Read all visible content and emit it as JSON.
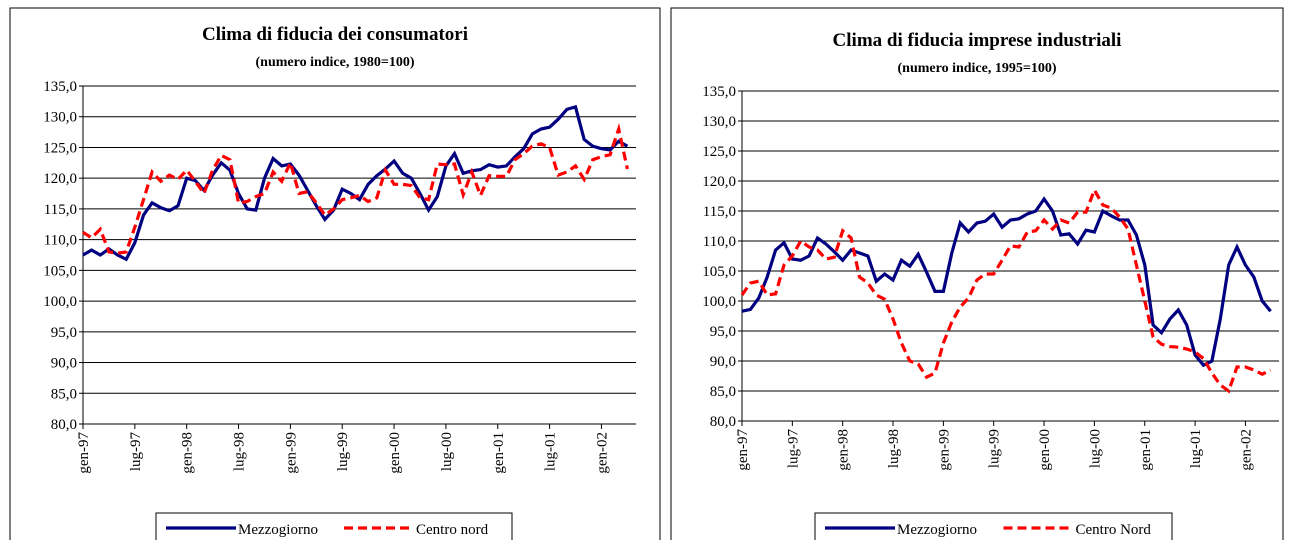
{
  "chart_data": [
    {
      "type": "line",
      "title": "Clima di fiducia dei consumatori",
      "subtitle": "(numero indice, 1980=100)",
      "categories": [
        "gen-97",
        null,
        null,
        null,
        null,
        null,
        "lug-97",
        null,
        null,
        null,
        null,
        null,
        "gen-98",
        null,
        null,
        null,
        null,
        null,
        "lug-98",
        null,
        null,
        null,
        null,
        null,
        "gen-99",
        null,
        null,
        null,
        null,
        null,
        "lug-99",
        null,
        null,
        null,
        null,
        null,
        "gen-00",
        null,
        null,
        null,
        null,
        null,
        "lug-00",
        null,
        null,
        null,
        null,
        null,
        "gen-01",
        null,
        null,
        null,
        null,
        null,
        "lug-01",
        null,
        null,
        null,
        null,
        null,
        "gen-02",
        null,
        null,
        null
      ],
      "series": [
        {
          "name": "Mezzogiorno",
          "color": "#000080",
          "dashed": false,
          "values": [
            107.5,
            108.3,
            107.5,
            108.5,
            107.5,
            106.8,
            109.5,
            114,
            116,
            115.2,
            114.7,
            115.5,
            120,
            119.6,
            118,
            120.5,
            122.5,
            121.3,
            117.5,
            115,
            114.8,
            120,
            123.2,
            122,
            122.3,
            120.5,
            118,
            115.5,
            113.3,
            114.8,
            118.2,
            117.5,
            116.5,
            119,
            120.4,
            121.5,
            122.8,
            120.8,
            120,
            117.5,
            114.8,
            117,
            122,
            124,
            120.8,
            121.2,
            121.4,
            122.2,
            121.8,
            122,
            123.5,
            124.8,
            127.2,
            128,
            128.3,
            129.6,
            131.2,
            131.6,
            126.3,
            125.2,
            124.8,
            124.6,
            126,
            125.2
          ]
        },
        {
          "name": "Centro nord",
          "color": "#ff0000",
          "dashed": true,
          "values": [
            111.2,
            110.3,
            111.7,
            108,
            107.8,
            108,
            112,
            116.5,
            121,
            119.5,
            120.5,
            119.8,
            121.3,
            119.5,
            117.5,
            121.3,
            123.7,
            123,
            116,
            116.2,
            117,
            117.5,
            121,
            119.5,
            122.5,
            117.5,
            117.8,
            116,
            114,
            115,
            116.5,
            116.8,
            117.2,
            116.2,
            116.8,
            121.3,
            119,
            119,
            118.8,
            116.8,
            116.5,
            122.3,
            122.2,
            122.3,
            117.3,
            121,
            117.2,
            120.4,
            120.3,
            120.3,
            123,
            124,
            125.2,
            125.6,
            125,
            120.5,
            121,
            122,
            119.8,
            123,
            123.5,
            123.8,
            128,
            121.5
          ]
        }
      ],
      "ylim": [
        80,
        135
      ],
      "yticks": [
        {
          "value": 80,
          "label": "80,0"
        },
        {
          "value": 85,
          "label": "85,0"
        },
        {
          "value": 90,
          "label": "90,0"
        },
        {
          "value": 95,
          "label": "95,0"
        },
        {
          "value": 100,
          "label": "100,0"
        },
        {
          "value": 105,
          "label": "105,0"
        },
        {
          "value": 110,
          "label": "110,0"
        },
        {
          "value": 115,
          "label": "115,0"
        },
        {
          "value": 120,
          "label": "120,0"
        },
        {
          "value": 125,
          "label": "125,0"
        },
        {
          "value": 130,
          "label": "130,0"
        },
        {
          "value": 135,
          "label": "135,0"
        }
      ],
      "grid": true,
      "legend": "bottom"
    },
    {
      "type": "line",
      "title": "Clima di fiducia imprese industriali",
      "subtitle": "(numero indice, 1995=100)",
      "categories": [
        "gen-97",
        null,
        null,
        null,
        null,
        null,
        "lug-97",
        null,
        null,
        null,
        null,
        null,
        "gen-98",
        null,
        null,
        null,
        null,
        null,
        "lug-98",
        null,
        null,
        null,
        null,
        null,
        "gen-99",
        null,
        null,
        null,
        null,
        null,
        "lug-99",
        null,
        null,
        null,
        null,
        null,
        "gen-00",
        null,
        null,
        null,
        null,
        null,
        "lug-00",
        null,
        null,
        null,
        null,
        null,
        "gen-01",
        null,
        null,
        null,
        null,
        null,
        "lug-01",
        null,
        null,
        null,
        null,
        null,
        "gen-02",
        null,
        null,
        null
      ],
      "series": [
        {
          "name": "Mezzogiorno",
          "color": "#000080",
          "dashed": false,
          "values": [
            98.3,
            98.6,
            100.5,
            104,
            108.5,
            109.7,
            107,
            106.8,
            107.5,
            110.5,
            109.5,
            108.2,
            106.8,
            108.5,
            108,
            107.5,
            103.3,
            104.5,
            103.5,
            106.8,
            105.8,
            107.8,
            104.8,
            101.6,
            101.6,
            108,
            113,
            111.5,
            113,
            113.3,
            114.5,
            112.3,
            113.5,
            113.7,
            114.5,
            115,
            117,
            115,
            111,
            111.2,
            109.5,
            111.8,
            111.5,
            115,
            114.2,
            113.5,
            113.5,
            111,
            106,
            96,
            94.7,
            97,
            98.5,
            96,
            91,
            89.3,
            90,
            97,
            106,
            109,
            106,
            104,
            100,
            98.3
          ]
        },
        {
          "name": "Centro Nord",
          "color": "#ff0000",
          "dashed": true,
          "values": [
            101,
            103,
            103.3,
            101,
            101.2,
            106,
            107.5,
            110,
            109,
            108.5,
            107,
            107.3,
            111.7,
            110.5,
            104,
            103,
            101,
            100.3,
            97,
            93,
            90,
            89.5,
            87.3,
            88,
            93,
            96.5,
            99,
            100.5,
            103.5,
            104.5,
            104.5,
            106.8,
            109.2,
            109,
            111.5,
            111.7,
            113.5,
            112,
            113.5,
            113,
            114.8,
            114.8,
            118.5,
            116,
            115.5,
            114,
            112,
            106,
            100,
            94,
            92.8,
            92.4,
            92.3,
            92,
            91.5,
            90.4,
            88,
            86,
            85,
            89,
            89,
            88.5,
            87.8,
            88.5
          ]
        }
      ],
      "ylim": [
        80,
        135
      ],
      "yticks": [
        {
          "value": 80,
          "label": "80,0"
        },
        {
          "value": 85,
          "label": "85,0"
        },
        {
          "value": 90,
          "label": "90,0"
        },
        {
          "value": 95,
          "label": "95,0"
        },
        {
          "value": 100,
          "label": "100,0"
        },
        {
          "value": 105,
          "label": "105,0"
        },
        {
          "value": 110,
          "label": "110,0"
        },
        {
          "value": 115,
          "label": "115,0"
        },
        {
          "value": 120,
          "label": "120,0"
        },
        {
          "value": 125,
          "label": "125,0"
        },
        {
          "value": 130,
          "label": "130,0"
        },
        {
          "value": 135,
          "label": "135,0"
        }
      ],
      "grid": true,
      "legend": "bottom"
    }
  ]
}
